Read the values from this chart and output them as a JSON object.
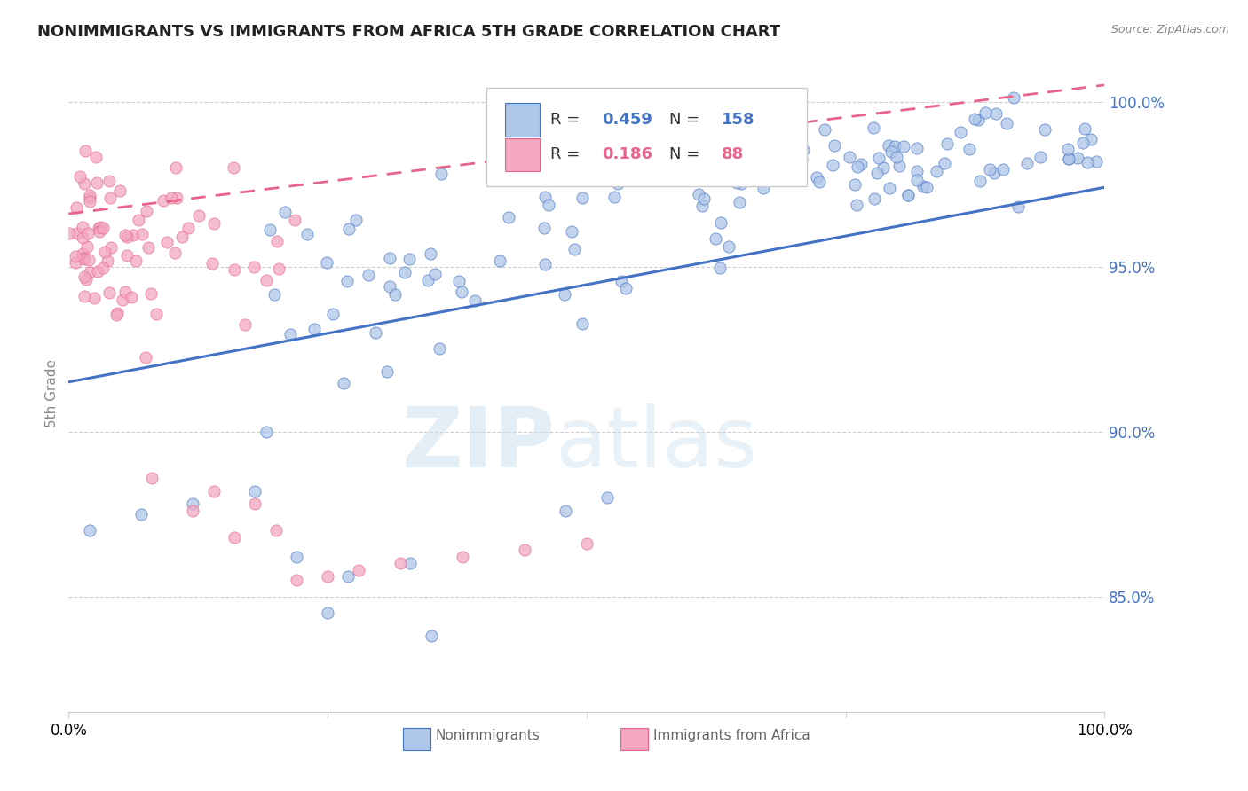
{
  "title": "NONIMMIGRANTS VS IMMIGRANTS FROM AFRICA 5TH GRADE CORRELATION CHART",
  "source": "Source: ZipAtlas.com",
  "ylabel": "5th Grade",
  "blue_R": 0.459,
  "blue_N": 158,
  "pink_R": 0.186,
  "pink_N": 88,
  "blue_color": "#aec6e8",
  "pink_color": "#f4a7c0",
  "blue_line_color": "#4472c4",
  "pink_line_color": "#e8648a",
  "legend_blue_label": "Nonimmigrants",
  "legend_pink_label": "Immigrants from Africa",
  "x_range": [
    0.0,
    1.0
  ],
  "y_range": [
    0.815,
    1.008
  ],
  "y_ticks": [
    0.85,
    0.9,
    0.95,
    1.0
  ],
  "y_tick_labels": [
    "85.0%",
    "90.0%",
    "95.0%",
    "100.0%"
  ],
  "blue_line_x": [
    0.0,
    1.0
  ],
  "blue_line_y": [
    0.915,
    0.974
  ],
  "pink_line_x": [
    0.0,
    1.0
  ],
  "pink_line_y": [
    0.966,
    1.005
  ]
}
